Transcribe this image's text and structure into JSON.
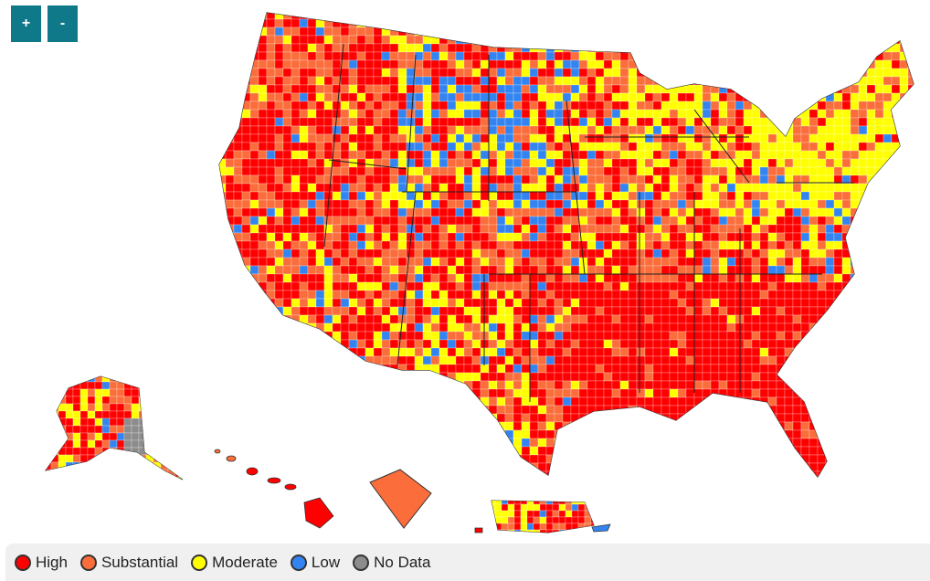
{
  "controls": {
    "zoom_in": "+",
    "zoom_out": "-"
  },
  "colors": {
    "high": "#ff0000",
    "substantial": "#fb6d3a",
    "moderate": "#ffff00",
    "low": "#3384f0",
    "no_data": "#8c8c8c",
    "border": "#333333"
  },
  "legend": [
    {
      "label": "High",
      "color": "#ff0000"
    },
    {
      "label": "Substantial",
      "color": "#fb6d3a"
    },
    {
      "label": "Moderate",
      "color": "#ffff00"
    },
    {
      "label": "Low",
      "color": "#3384f0"
    },
    {
      "label": "No Data",
      "color": "#8c8c8c"
    }
  ]
}
